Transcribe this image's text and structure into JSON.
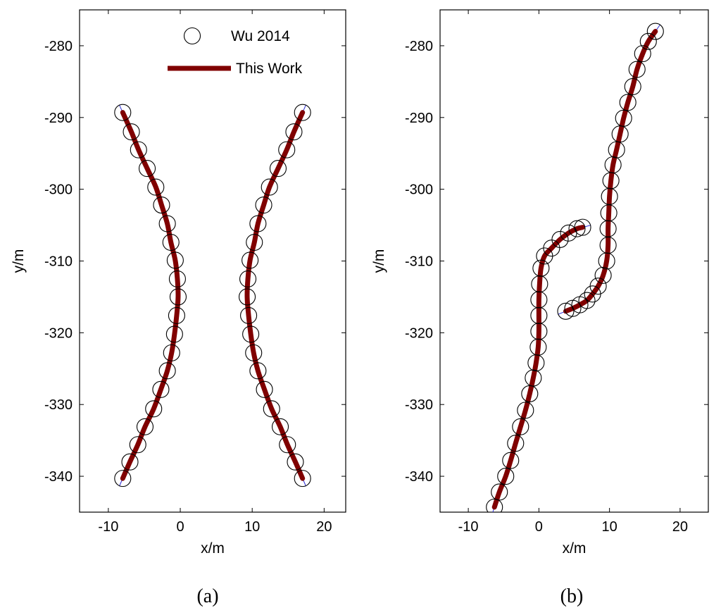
{
  "chart_data": [
    {
      "type": "scatter",
      "panel_label": "(a)",
      "xlabel": "x/m",
      "ylabel": "y/m",
      "xlim": [
        -14,
        23
      ],
      "ylim": [
        -345,
        -275
      ],
      "xticks": [
        -10,
        0,
        10,
        20
      ],
      "yticks": [
        -280,
        -290,
        -300,
        -310,
        -320,
        -330,
        -340
      ],
      "grid": false,
      "legend": {
        "placement": "top-right",
        "entries": [
          {
            "label": "Wu 2014",
            "marker": "open-circle",
            "color": "#000000"
          },
          {
            "label": "This Work",
            "marker": "thick-line",
            "color": "#800000"
          }
        ]
      },
      "series": [
        {
          "name": "Wu 2014",
          "curves": [
            {
              "points": [
                [
                  -8.0,
                  -289.3
                ],
                [
                  -6.8,
                  -292.0
                ],
                [
                  -5.8,
                  -294.5
                ],
                [
                  -4.6,
                  -297.1
                ],
                [
                  -3.4,
                  -299.7
                ],
                [
                  -2.6,
                  -302.2
                ],
                [
                  -1.8,
                  -304.8
                ],
                [
                  -1.3,
                  -307.4
                ],
                [
                  -0.7,
                  -309.9
                ],
                [
                  -0.4,
                  -312.5
                ],
                [
                  -0.3,
                  -315.0
                ],
                [
                  -0.5,
                  -317.6
                ],
                [
                  -0.8,
                  -320.2
                ],
                [
                  -1.2,
                  -322.8
                ],
                [
                  -1.8,
                  -325.3
                ],
                [
                  -2.7,
                  -327.9
                ],
                [
                  -3.7,
                  -330.6
                ],
                [
                  -4.9,
                  -333.1
                ],
                [
                  -5.9,
                  -335.6
                ],
                [
                  -7.0,
                  -338.0
                ],
                [
                  -8.0,
                  -340.3
                ]
              ]
            },
            {
              "points": [
                [
                  17.0,
                  -289.3
                ],
                [
                  15.8,
                  -292.0
                ],
                [
                  14.8,
                  -294.5
                ],
                [
                  13.6,
                  -297.1
                ],
                [
                  12.4,
                  -299.7
                ],
                [
                  11.6,
                  -302.2
                ],
                [
                  10.8,
                  -304.8
                ],
                [
                  10.3,
                  -307.4
                ],
                [
                  9.7,
                  -309.9
                ],
                [
                  9.4,
                  -312.5
                ],
                [
                  9.3,
                  -315.0
                ],
                [
                  9.5,
                  -317.6
                ],
                [
                  9.8,
                  -320.2
                ],
                [
                  10.2,
                  -322.8
                ],
                [
                  10.8,
                  -325.3
                ],
                [
                  11.7,
                  -327.9
                ],
                [
                  12.7,
                  -330.6
                ],
                [
                  13.9,
                  -333.1
                ],
                [
                  14.9,
                  -335.6
                ],
                [
                  16.0,
                  -338.0
                ],
                [
                  17.0,
                  -340.3
                ]
              ]
            }
          ]
        },
        {
          "name": "This Work",
          "curves": [
            {
              "points": [
                [
                  -8.0,
                  -289.3
                ],
                [
                  -6.8,
                  -292.0
                ],
                [
                  -5.8,
                  -294.5
                ],
                [
                  -4.6,
                  -297.1
                ],
                [
                  -3.4,
                  -299.7
                ],
                [
                  -2.6,
                  -302.2
                ],
                [
                  -1.8,
                  -304.8
                ],
                [
                  -1.3,
                  -307.4
                ],
                [
                  -0.7,
                  -309.9
                ],
                [
                  -0.4,
                  -312.5
                ],
                [
                  -0.3,
                  -315.0
                ],
                [
                  -0.5,
                  -317.6
                ],
                [
                  -0.8,
                  -320.2
                ],
                [
                  -1.2,
                  -322.8
                ],
                [
                  -1.8,
                  -325.3
                ],
                [
                  -2.7,
                  -327.9
                ],
                [
                  -3.7,
                  -330.6
                ],
                [
                  -4.9,
                  -333.1
                ],
                [
                  -5.9,
                  -335.6
                ],
                [
                  -7.0,
                  -338.0
                ],
                [
                  -8.0,
                  -340.3
                ]
              ]
            },
            {
              "points": [
                [
                  17.0,
                  -289.3
                ],
                [
                  15.8,
                  -292.0
                ],
                [
                  14.8,
                  -294.5
                ],
                [
                  13.6,
                  -297.1
                ],
                [
                  12.4,
                  -299.7
                ],
                [
                  11.6,
                  -302.2
                ],
                [
                  10.8,
                  -304.8
                ],
                [
                  10.3,
                  -307.4
                ],
                [
                  9.7,
                  -309.9
                ],
                [
                  9.4,
                  -312.5
                ],
                [
                  9.3,
                  -315.0
                ],
                [
                  9.5,
                  -317.6
                ],
                [
                  9.8,
                  -320.2
                ],
                [
                  10.2,
                  -322.8
                ],
                [
                  10.8,
                  -325.3
                ],
                [
                  11.7,
                  -327.9
                ],
                [
                  12.7,
                  -330.6
                ],
                [
                  13.9,
                  -333.1
                ],
                [
                  14.9,
                  -335.6
                ],
                [
                  16.0,
                  -338.0
                ],
                [
                  17.0,
                  -340.3
                ]
              ]
            }
          ]
        }
      ]
    },
    {
      "type": "scatter",
      "panel_label": "(b)",
      "xlabel": "x/m",
      "ylabel": "y/m",
      "xlim": [
        -14,
        24
      ],
      "ylim": [
        -345,
        -275
      ],
      "xticks": [
        -10,
        0,
        10,
        20
      ],
      "yticks": [
        -280,
        -290,
        -300,
        -310,
        -320,
        -330,
        -340
      ],
      "grid": false,
      "series": [
        {
          "name": "Wu 2014",
          "curves": [
            {
              "points": [
                [
                  -6.3,
                  -344.3
                ],
                [
                  -5.6,
                  -342.2
                ],
                [
                  -4.7,
                  -340.0
                ],
                [
                  -4.0,
                  -337.8
                ],
                [
                  -3.3,
                  -335.4
                ],
                [
                  -2.6,
                  -333.1
                ],
                [
                  -1.9,
                  -330.8
                ],
                [
                  -1.3,
                  -328.5
                ],
                [
                  -0.8,
                  -326.3
                ],
                [
                  -0.4,
                  -324.2
                ],
                [
                  -0.1,
                  -322.0
                ],
                [
                  0.0,
                  -319.8
                ],
                [
                  0.0,
                  -317.6
                ],
                [
                  0.0,
                  -315.4
                ],
                [
                  0.1,
                  -313.2
                ],
                [
                  0.3,
                  -311.0
                ],
                [
                  0.8,
                  -309.3
                ],
                [
                  1.8,
                  -308.2
                ],
                [
                  3.0,
                  -307.0
                ],
                [
                  4.2,
                  -306.1
                ],
                [
                  5.4,
                  -305.5
                ],
                [
                  6.2,
                  -305.3
                ]
              ]
            },
            {
              "points": [
                [
                  3.8,
                  -317.0
                ],
                [
                  4.8,
                  -316.6
                ],
                [
                  5.8,
                  -316.1
                ],
                [
                  6.8,
                  -315.5
                ],
                [
                  7.6,
                  -314.6
                ],
                [
                  8.4,
                  -313.5
                ],
                [
                  9.1,
                  -312.0
                ],
                [
                  9.6,
                  -310.0
                ],
                [
                  9.8,
                  -307.8
                ],
                [
                  9.8,
                  -305.5
                ],
                [
                  9.9,
                  -303.3
                ],
                [
                  10.0,
                  -301.0
                ],
                [
                  10.2,
                  -298.8
                ],
                [
                  10.5,
                  -296.6
                ],
                [
                  11.0,
                  -294.5
                ],
                [
                  11.5,
                  -292.3
                ],
                [
                  12.0,
                  -290.1
                ],
                [
                  12.6,
                  -287.9
                ],
                [
                  13.3,
                  -285.7
                ],
                [
                  13.9,
                  -283.3
                ],
                [
                  14.7,
                  -281.1
                ],
                [
                  15.5,
                  -279.4
                ],
                [
                  16.5,
                  -278.0
                ]
              ]
            }
          ]
        },
        {
          "name": "This Work",
          "curves": [
            {
              "points": [
                [
                  -6.3,
                  -344.3
                ],
                [
                  -5.6,
                  -342.2
                ],
                [
                  -4.7,
                  -340.0
                ],
                [
                  -4.0,
                  -337.8
                ],
                [
                  -3.3,
                  -335.4
                ],
                [
                  -2.6,
                  -333.1
                ],
                [
                  -1.9,
                  -330.8
                ],
                [
                  -1.3,
                  -328.5
                ],
                [
                  -0.8,
                  -326.3
                ],
                [
                  -0.4,
                  -324.2
                ],
                [
                  -0.1,
                  -322.0
                ],
                [
                  0.0,
                  -319.8
                ],
                [
                  0.0,
                  -317.6
                ],
                [
                  0.0,
                  -315.4
                ],
                [
                  0.1,
                  -313.2
                ],
                [
                  0.3,
                  -311.0
                ],
                [
                  0.8,
                  -309.3
                ],
                [
                  1.8,
                  -308.2
                ],
                [
                  3.0,
                  -307.0
                ],
                [
                  4.2,
                  -306.1
                ],
                [
                  5.4,
                  -305.5
                ],
                [
                  6.2,
                  -305.3
                ]
              ]
            },
            {
              "points": [
                [
                  3.8,
                  -317.0
                ],
                [
                  4.8,
                  -316.6
                ],
                [
                  5.8,
                  -316.1
                ],
                [
                  6.8,
                  -315.5
                ],
                [
                  7.6,
                  -314.6
                ],
                [
                  8.4,
                  -313.5
                ],
                [
                  9.1,
                  -312.0
                ],
                [
                  9.6,
                  -310.0
                ],
                [
                  9.8,
                  -307.8
                ],
                [
                  9.8,
                  -305.5
                ],
                [
                  9.9,
                  -303.3
                ],
                [
                  10.0,
                  -301.0
                ],
                [
                  10.2,
                  -298.8
                ],
                [
                  10.5,
                  -296.6
                ],
                [
                  11.0,
                  -294.5
                ],
                [
                  11.5,
                  -292.3
                ],
                [
                  12.0,
                  -290.1
                ],
                [
                  12.6,
                  -287.9
                ],
                [
                  13.3,
                  -285.7
                ],
                [
                  13.9,
                  -283.3
                ],
                [
                  14.7,
                  -281.1
                ],
                [
                  15.5,
                  -279.4
                ],
                [
                  16.5,
                  -278.0
                ]
              ]
            }
          ]
        }
      ]
    }
  ],
  "colors": {
    "this_work": "#800000",
    "wu_2014": "#000000",
    "guide_line": "#2b2bd6"
  }
}
